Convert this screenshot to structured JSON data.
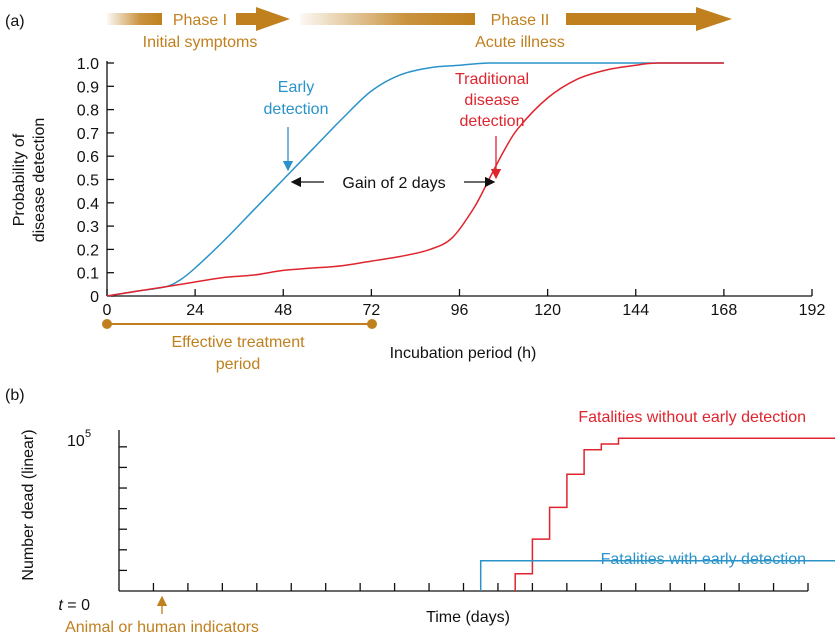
{
  "panel_labels": [
    "(a)",
    "(b)"
  ],
  "phases": {
    "phase1": {
      "title": "Phase I",
      "subtitle": "Initial symptoms"
    },
    "phase2": {
      "title": "Phase II",
      "subtitle": "Acute illness"
    }
  },
  "colors": {
    "accent": "#c0801e",
    "early": "#2a93c9",
    "traditional": "#e0242e",
    "ink": "#111111"
  },
  "chart_data": [
    {
      "type": "line",
      "panel": "(a)",
      "title": "",
      "xlabel": "Incubation period (h)",
      "ylabel": [
        "Probability of",
        "disease detection"
      ],
      "xlim": [
        0,
        192
      ],
      "ylim": [
        0,
        1.0
      ],
      "xticks": [
        "0",
        "24",
        "48",
        "72",
        "96",
        "120",
        "144",
        "168",
        "192"
      ],
      "yticks": [
        "0",
        "0.1",
        "0.2",
        "0.3",
        "0.4",
        "0.5",
        "0.6",
        "0.7",
        "0.8",
        "0.9",
        "1.0"
      ],
      "series": [
        {
          "name": "Early detection",
          "label_lines": [
            "Early",
            "detection"
          ],
          "color": "#2a93c9",
          "x": [
            0,
            8,
            16,
            20,
            24,
            32,
            40,
            48,
            56,
            64,
            72,
            80,
            88,
            96,
            104,
            120,
            144,
            168
          ],
          "y": [
            0,
            0.02,
            0.04,
            0.07,
            0.12,
            0.24,
            0.37,
            0.5,
            0.63,
            0.76,
            0.88,
            0.95,
            0.98,
            0.99,
            1.0,
            1.0,
            1.0,
            1.0
          ]
        },
        {
          "name": "Traditional disease detection",
          "label_lines": [
            "Traditional",
            "disease",
            "detection"
          ],
          "color": "#e0242e",
          "x": [
            0,
            8,
            16,
            24,
            32,
            40,
            48,
            56,
            64,
            72,
            80,
            88,
            94,
            100,
            104,
            108,
            112,
            120,
            128,
            136,
            144,
            150,
            168
          ],
          "y": [
            0,
            0.02,
            0.04,
            0.06,
            0.08,
            0.09,
            0.11,
            0.12,
            0.13,
            0.15,
            0.17,
            0.2,
            0.25,
            0.38,
            0.5,
            0.62,
            0.72,
            0.85,
            0.93,
            0.97,
            0.99,
            1.0,
            1.0
          ]
        }
      ],
      "annotations": {
        "gain": {
          "text": "Gain of 2 days",
          "from_x": 48,
          "to_x": 104,
          "y": 0.5
        },
        "treatment": {
          "text_lines": [
            "Effective treatment",
            "period"
          ],
          "from_x": 0,
          "to_x": 72
        }
      }
    },
    {
      "type": "line",
      "panel": "(b)",
      "title": "",
      "xlabel": "Time (days)",
      "ylabel": "Number dead (linear)",
      "y_tick_label": {
        "base": "10",
        "exp": "5",
        "value": 100000
      },
      "ylim": [
        0,
        120000
      ],
      "x_start_label": {
        "text": "t",
        "rest": " = 0"
      },
      "indicator": {
        "text": "Animal or human indicators",
        "x": 3
      },
      "n_day_ticks": 20,
      "series": [
        {
          "name": "Fatalities without early detection",
          "color": "#e0242e",
          "x": [
            11.5,
            11.5,
            12,
            12,
            12.5,
            12.5,
            13,
            13,
            13.5,
            13.5,
            14,
            14,
            14.5,
            14.5,
            40
          ],
          "y": [
            0,
            12000,
            12000,
            36000,
            36000,
            58000,
            58000,
            81000,
            81000,
            98000,
            98000,
            102000,
            102000,
            106000,
            106000
          ]
        },
        {
          "name": "Fatalities with early detection",
          "color": "#2a93c9",
          "x": [
            10.5,
            10.5,
            40
          ],
          "y": [
            0,
            21000,
            21000
          ]
        }
      ]
    }
  ]
}
